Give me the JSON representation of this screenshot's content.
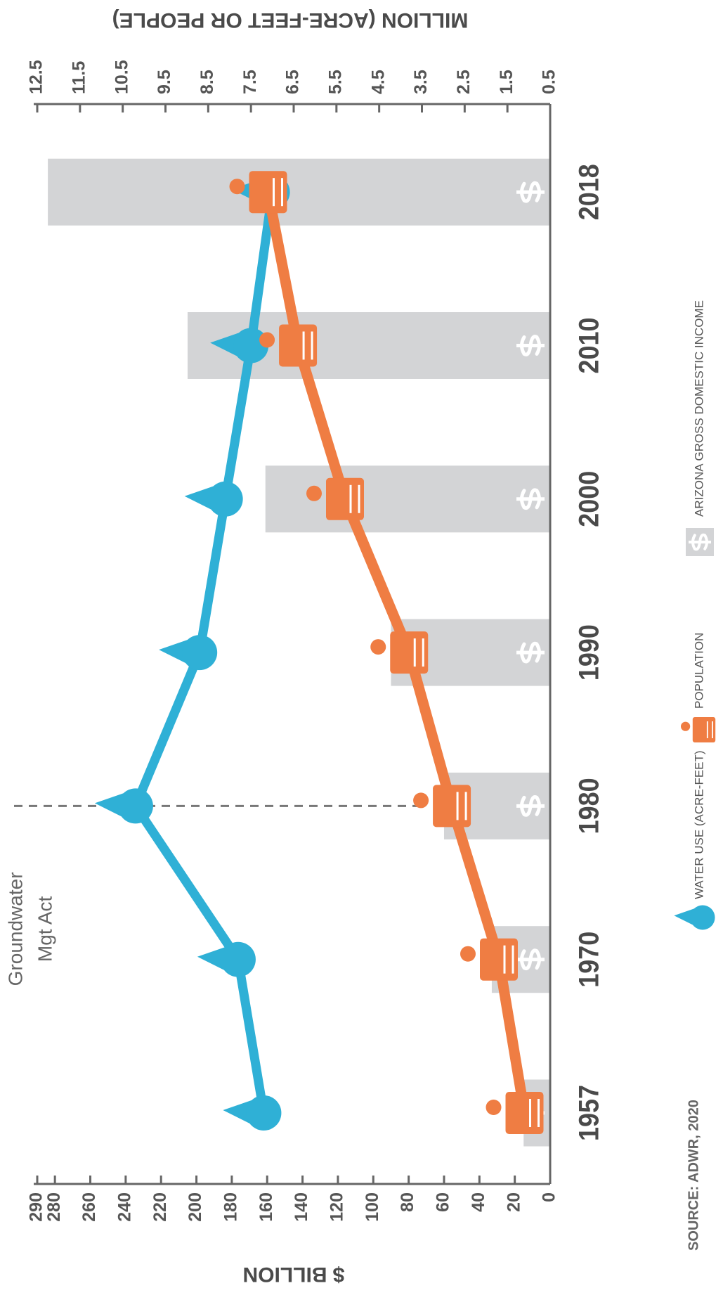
{
  "chart_data": {
    "type": "bar_line",
    "categories": [
      "1957",
      "1970",
      "1980",
      "1990",
      "2000",
      "2010",
      "2018"
    ],
    "bar_series": {
      "name": "ARIZONA GROSS DOMESTIC INCOME",
      "color": "#d3d4d6",
      "values": [
        15,
        33,
        60,
        90,
        161,
        205,
        284
      ]
    },
    "series": [
      {
        "name": "WATER USE (ACRE-FEET)",
        "color": "#2fb0d6",
        "axis": "y2",
        "values": [
          7.2,
          7.8,
          10.2,
          8.7,
          8.1,
          7.5,
          7.0
        ]
      },
      {
        "name": "POPULATION",
        "color": "#ef7d43",
        "axis": "y2",
        "values": [
          1.1,
          1.7,
          2.8,
          3.8,
          5.3,
          6.4,
          7.1
        ]
      }
    ],
    "ylabel": "$ BILLION",
    "y2label": "MILLION (ACRE-FEET OR PEOPLE)",
    "ylim": [
      0,
      290
    ],
    "yticks": [
      0,
      20,
      40,
      60,
      80,
      100,
      120,
      140,
      160,
      180,
      200,
      220,
      240,
      260,
      280,
      290
    ],
    "y2lim": [
      0.5,
      12.5
    ],
    "y2ticks": [
      0.5,
      1.5,
      2.5,
      3.5,
      4.5,
      5.5,
      6.5,
      7.5,
      8.5,
      9.5,
      10.5,
      11.5,
      12.5
    ],
    "annotation": {
      "lines": [
        "Groundwater",
        "Mgt Act"
      ],
      "category": "1980"
    },
    "source": "SOURCE: ADWR, 2020"
  }
}
